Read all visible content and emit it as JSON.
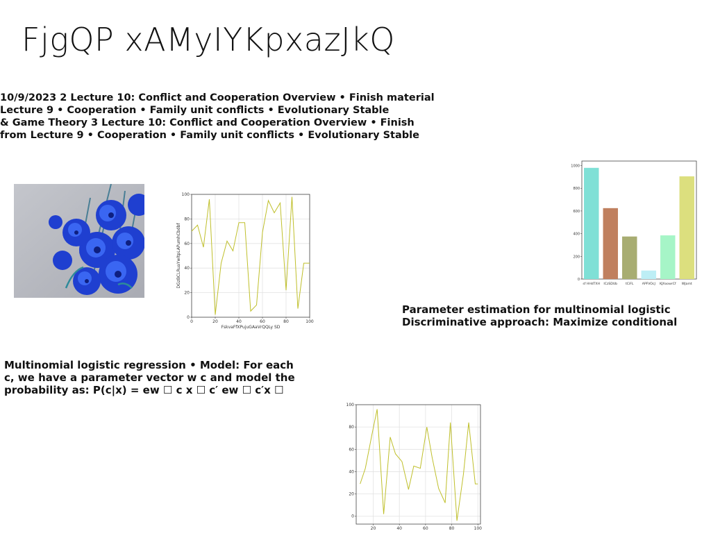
{
  "slide": {
    "title": "FjgQP xAMyIYKpxazJkQ",
    "text_block_1": {
      "lines": [
        "10/9/2023 2 Lecture 10: Conflict and Cooperation Overview • Finish material",
        "Lecture 9 • Cooperation • Family unit conflicts • Evolutionary Stable",
        "& Game Theory 3 Lecture 10: Conflict and Cooperation Overview • Finish",
        "from Lecture 9 • Cooperation • Family unit conflicts • Evolutionary Stable"
      ]
    },
    "text_block_2": {
      "lines": [
        "Parameter estimation for multinomial logistic",
        "Discriminative approach: Maximize conditional"
      ]
    },
    "text_block_3": {
      "lines": [
        "Multinomial logistic regression • Model: For each",
        "c, we have a parameter vector w c and model the",
        "probability as: P(c|x) = ew ☐ c x ☐ c′ ew ☐ c′x ☐"
      ]
    },
    "photo": {
      "subject": "blue-flowers-photo"
    }
  },
  "chart_data": [
    {
      "type": "line",
      "xlabel": "FskvaFfXPujuGAaVrQQLy SD",
      "ylabel": "DGzBCLRuaYwltpLAPumhCbdbf",
      "x": [
        0,
        5,
        10,
        15,
        20,
        25,
        30,
        35,
        40,
        45,
        50,
        55,
        60,
        65,
        70,
        75,
        80,
        85,
        90,
        95,
        100
      ],
      "series": [
        {
          "values": [
            70,
            75,
            57,
            96,
            2,
            44,
            62,
            54,
            77,
            77,
            5,
            10,
            69,
            95,
            85,
            93,
            22,
            98,
            7,
            44,
            44
          ]
        }
      ],
      "color": "#bfbf2a",
      "xlim": [
        0,
        100
      ],
      "ylim": [
        0,
        100
      ],
      "xticks": [
        0,
        20,
        40,
        60,
        80,
        100
      ],
      "yticks": [
        0,
        20,
        40,
        60,
        80,
        100
      ],
      "grid": true
    },
    {
      "type": "bar",
      "categories": [
        "sf HHdTXH",
        "ICzSDUb",
        "tCiFL",
        "APFVOcJ",
        "KJXoowrCf",
        "WJamt"
      ],
      "values": [
        980,
        625,
        375,
        75,
        385,
        905
      ],
      "colors": [
        "#7fe0d6",
        "#c0805f",
        "#a8ad72",
        "#bdeef5",
        "#a6f5c7",
        "#dcdf7e"
      ],
      "ylim": [
        0,
        1040
      ],
      "yticks": [
        0,
        200,
        400,
        600,
        800,
        1000
      ],
      "grid": false
    },
    {
      "type": "line",
      "x": [
        10,
        14,
        19,
        23,
        28,
        33,
        37,
        42,
        47,
        51,
        56,
        61,
        65,
        70,
        75,
        79,
        84,
        89,
        93,
        98,
        100
      ],
      "series": [
        {
          "values": [
            29,
            43,
            73,
            96,
            2,
            71,
            56,
            49,
            24,
            45,
            43,
            80,
            53,
            25,
            12,
            84,
            -4,
            38,
            84,
            29,
            29
          ]
        }
      ],
      "color": "#bfbf2a",
      "xlim": [
        7,
        102
      ],
      "ylim": [
        -7,
        100
      ],
      "xticks": [
        20,
        40,
        60,
        80,
        100
      ],
      "yticks": [
        0,
        20,
        40,
        60,
        80,
        100
      ],
      "grid": true
    }
  ]
}
